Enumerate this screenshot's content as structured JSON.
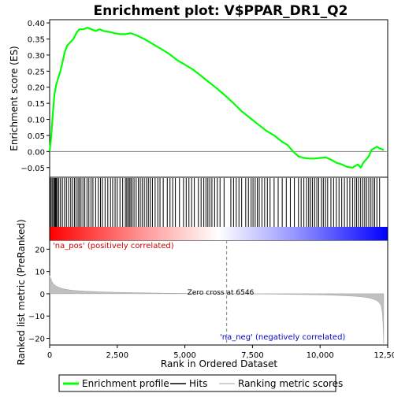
{
  "chart_data": {
    "type": "line",
    "title": "Enrichment plot: V$PPAR_DR1_Q2",
    "xlabel": "Rank in Ordered Dataset",
    "colors": {
      "es_line": "#00ff00",
      "hits": "#000000",
      "metric_fill": "#c0c0c0",
      "zero_line": "#808080",
      "pos_label": "#cc0000",
      "neg_label": "#0000cc"
    },
    "es_panel": {
      "ylabel": "Enrichment score (ES)",
      "ylim": [
        -0.08,
        0.41
      ],
      "yticks": [
        -0.05,
        0.0,
        0.05,
        0.1,
        0.15,
        0.2,
        0.25,
        0.3,
        0.35,
        0.4
      ],
      "ytick_labels": [
        "−0.05",
        "0.00",
        "0.05",
        "0.10",
        "0.15",
        "0.20",
        "0.25",
        "0.30",
        "0.35",
        "0.40"
      ],
      "x": [
        0,
        60,
        120,
        180,
        250,
        320,
        400,
        480,
        560,
        650,
        760,
        880,
        1000,
        1100,
        1250,
        1400,
        1550,
        1700,
        1850,
        2000,
        2200,
        2400,
        2600,
        2800,
        3000,
        3200,
        3500,
        3800,
        4100,
        4400,
        4700,
        5000,
        5300,
        5600,
        5900,
        6200,
        6546,
        6800,
        7100,
        7400,
        7700,
        8000,
        8300,
        8600,
        8800,
        9000,
        9200,
        9400,
        9600,
        9800,
        10000,
        10200,
        10400,
        10600,
        10800,
        11000,
        11200,
        11300,
        11400,
        11500,
        11600,
        11700,
        11800,
        11900,
        12000,
        12100,
        12200,
        12350
      ],
      "y": [
        0.0,
        0.05,
        0.12,
        0.18,
        0.21,
        0.23,
        0.25,
        0.28,
        0.31,
        0.33,
        0.34,
        0.35,
        0.37,
        0.38,
        0.38,
        0.385,
        0.38,
        0.375,
        0.38,
        0.375,
        0.372,
        0.368,
        0.365,
        0.365,
        0.368,
        0.362,
        0.35,
        0.335,
        0.32,
        0.305,
        0.285,
        0.27,
        0.255,
        0.235,
        0.215,
        0.195,
        0.17,
        0.15,
        0.125,
        0.105,
        0.085,
        0.065,
        0.05,
        0.03,
        0.02,
        0.0,
        -0.015,
        -0.02,
        -0.022,
        -0.022,
        -0.02,
        -0.018,
        -0.025,
        -0.035,
        -0.04,
        -0.048,
        -0.05,
        -0.045,
        -0.04,
        -0.05,
        -0.035,
        -0.025,
        -0.015,
        0.005,
        0.01,
        0.015,
        0.01,
        0.005
      ]
    },
    "hits_panel": {
      "hit_ranks": [
        20,
        60,
        110,
        150,
        190,
        220,
        250,
        290,
        340,
        400,
        470,
        550,
        620,
        700,
        780,
        850,
        920,
        980,
        1050,
        1100,
        1160,
        1230,
        1300,
        1380,
        1450,
        1530,
        1600,
        1700,
        1800,
        1880,
        1950,
        2050,
        2150,
        2250,
        2330,
        2420,
        2500,
        2600,
        2700,
        2800,
        2850,
        2900,
        2950,
        3000,
        3050,
        3120,
        3200,
        3280,
        3350,
        3420,
        3500,
        3580,
        3650,
        3720,
        3800,
        3900,
        4000,
        4080,
        4200,
        4350,
        4450,
        4550,
        4650,
        4800,
        4950,
        5050,
        5150,
        5250,
        5350,
        5500,
        5600,
        5700,
        5780,
        5850,
        5920,
        6000,
        6100,
        6200,
        6300,
        6450,
        6700,
        6800,
        6900,
        7000,
        7100,
        7250,
        7350,
        7450,
        7520,
        7600,
        7680,
        7750,
        7850,
        7950,
        8050,
        8150,
        8300,
        8450,
        8600,
        8750,
        8900,
        9050,
        9200,
        9300,
        9400,
        9500,
        9580,
        9650,
        9720,
        9800,
        9880,
        9950,
        10050,
        10120,
        10200,
        10280,
        10400,
        10500,
        10600,
        10700,
        10800,
        10900,
        11000,
        11100,
        11200,
        11280,
        11350,
        11420,
        11500,
        11580,
        11650,
        11720,
        11800,
        11880,
        11950,
        12020,
        12100,
        12200
      ]
    },
    "metric_panel": {
      "ylabel": "Ranked list metric (PreRanked)",
      "ylim": [
        -23,
        24
      ],
      "yticks": [
        -20,
        -10,
        0,
        10,
        20
      ],
      "ytick_labels": [
        "−20",
        "−10",
        "0",
        "10",
        "20"
      ],
      "x": [
        0,
        50,
        100,
        200,
        300,
        500,
        800,
        1200,
        2000,
        3000,
        4000,
        5000,
        6000,
        6546,
        7000,
        8000,
        9000,
        10000,
        10800,
        11400,
        11800,
        12000,
        12150,
        12250,
        12300,
        12330,
        12350
      ],
      "y": [
        8,
        6.5,
        5,
        3.8,
        3,
        2.2,
        1.6,
        1.2,
        0.8,
        0.5,
        0.3,
        0.15,
        0.05,
        0.0,
        -0.05,
        -0.15,
        -0.3,
        -0.5,
        -0.8,
        -1.2,
        -1.8,
        -2.5,
        -3.5,
        -5,
        -8,
        -14,
        -22
      ],
      "zero_cross_label": "Zero cross at 6546",
      "zero_cross_rank": 6546,
      "pos_label": "'na_pos' (positively correlated)",
      "neg_label": "'na_neg' (negatively correlated)"
    },
    "xlim": [
      0,
      12500
    ],
    "xticks": [
      0,
      2500,
      5000,
      7500,
      10000,
      12500
    ],
    "xtick_labels": [
      "0",
      "2,500",
      "5,000",
      "7,500",
      "10,000",
      "12,500"
    ],
    "legend": {
      "position": "bottom",
      "items": [
        "Enrichment profile",
        "Hits",
        "Ranking metric scores"
      ]
    }
  }
}
